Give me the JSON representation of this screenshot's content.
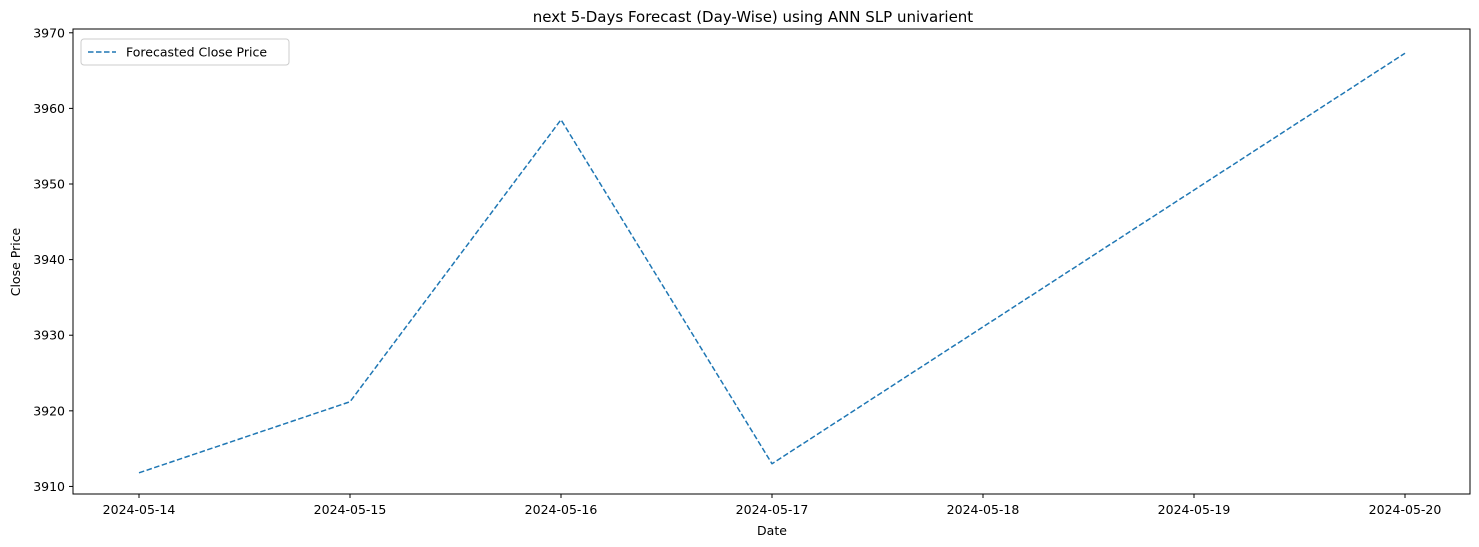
{
  "chart_data": {
    "type": "line",
    "title": "next 5-Days Forecast (Day-Wise) using ANN SLP univarient",
    "xlabel": "Date",
    "ylabel": "Close Price",
    "x": [
      "2024-05-14",
      "2024-05-15",
      "2024-05-16",
      "2024-05-17",
      "2024-05-20"
    ],
    "x_ticks": [
      "2024-05-14",
      "2024-05-15",
      "2024-05-16",
      "2024-05-17",
      "2024-05-18",
      "2024-05-19",
      "2024-05-20"
    ],
    "y_ticks": [
      3910,
      3920,
      3930,
      3940,
      3950,
      3960,
      3970
    ],
    "ylim": [
      3909,
      3970.5
    ],
    "grid": false,
    "legend_position": "top-left",
    "series": [
      {
        "name": "Forecasted Close Price",
        "line_style": "dashed",
        "color": "#1f77b4",
        "values": [
          3911.8,
          3921.2,
          3958.5,
          3913.0,
          3967.3
        ]
      }
    ]
  }
}
